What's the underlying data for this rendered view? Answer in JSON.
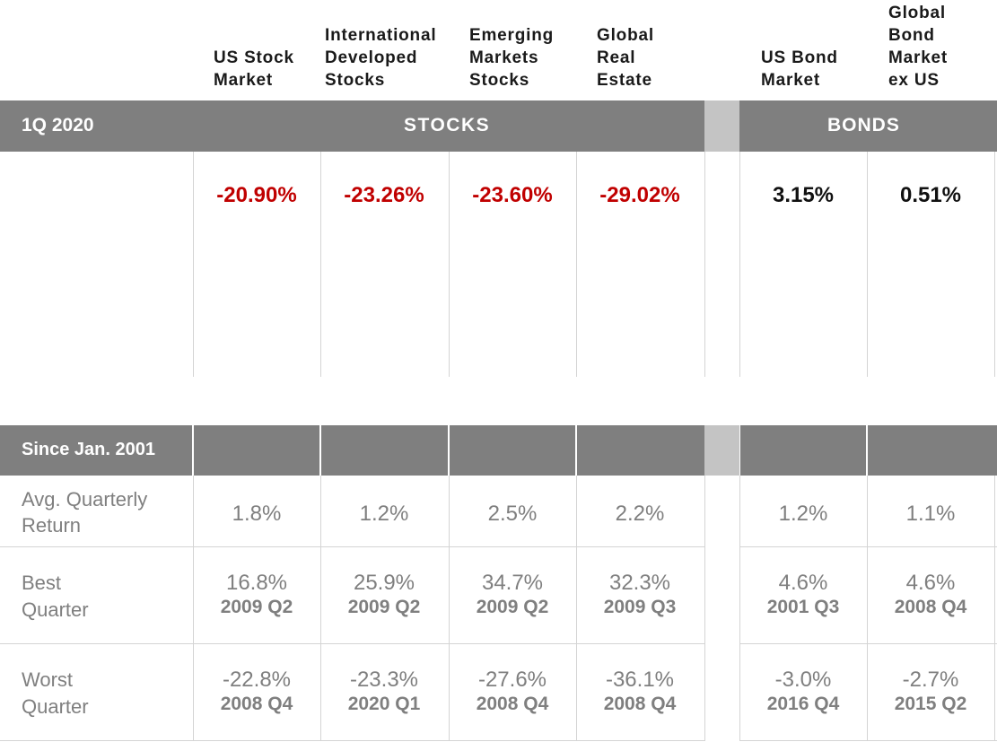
{
  "columns": [
    {
      "name": "US Stock\nMarket"
    },
    {
      "name": "International\nDeveloped\nStocks"
    },
    {
      "name": "Emerging\nMarkets\nStocks"
    },
    {
      "name": "Global\nReal\nEstate"
    },
    {
      "name": "US Bond\nMarket"
    },
    {
      "name": "Global\nBond\nMarket\nex US"
    }
  ],
  "top_band": {
    "period": "1Q 2020",
    "stocks": "STOCKS",
    "bonds": "BONDS"
  },
  "bottom_band": {
    "period": "Since Jan. 2001"
  },
  "row_labels": {
    "avg": "Avg. Quarterly\nReturn",
    "best": "Best\nQuarter",
    "worst": "Worst\nQuarter"
  },
  "colors": {
    "negative": "#c00000",
    "positive": "#111111",
    "band": "#7f7f7f",
    "gap": "#c4c4c4"
  },
  "chart_data": {
    "type": "table",
    "quarter_returns": {
      "period": "1Q 2020",
      "values": [
        "-20.90%",
        "-23.26%",
        "-23.60%",
        "-29.02%",
        "3.15%",
        "0.51%"
      ]
    },
    "since_2001": {
      "period": "Since Jan. 2001",
      "avg_quarterly_return": [
        "1.8%",
        "1.2%",
        "2.5%",
        "2.2%",
        "1.2%",
        "1.1%"
      ],
      "best_quarter": {
        "values": [
          "16.8%",
          "25.9%",
          "34.7%",
          "32.3%",
          "4.6%",
          "4.6%"
        ],
        "dates": [
          "2009 Q2",
          "2009 Q2",
          "2009 Q2",
          "2009 Q3",
          "2001 Q3",
          "2008 Q4"
        ]
      },
      "worst_quarter": {
        "values": [
          "-22.8%",
          "-23.3%",
          "-27.6%",
          "-36.1%",
          "-3.0%",
          "-2.7%"
        ],
        "dates": [
          "2008 Q4",
          "2020 Q1",
          "2008 Q4",
          "2008 Q4",
          "2016 Q4",
          "2015 Q2"
        ]
      }
    }
  }
}
